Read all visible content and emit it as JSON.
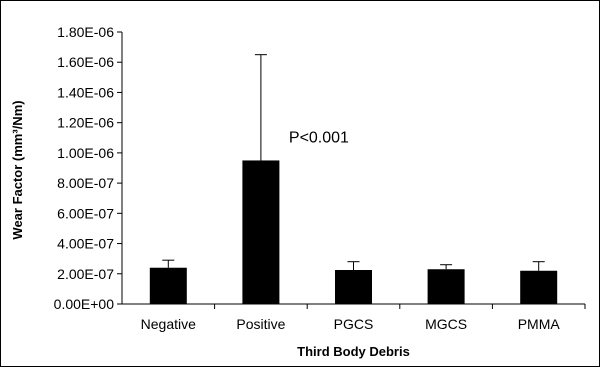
{
  "chart_data": {
    "type": "bar",
    "categories": [
      "Negative",
      "Positive",
      "PGCS",
      "MGCS",
      "PMMA"
    ],
    "values": [
      2.4e-07,
      9.5e-07,
      2.25e-07,
      2.3e-07,
      2.2e-07
    ],
    "error_upper": [
      2.9e-07,
      1.65e-06,
      2.8e-07,
      2.6e-07,
      2.8e-07
    ],
    "xlabel": "Third Body Debris",
    "ylabel": "Wear Factor (mm³/Nm)",
    "ylim": [
      0,
      1.8e-06
    ],
    "yticks": [
      0,
      2e-07,
      4e-07,
      6e-07,
      8e-07,
      1e-06,
      1.2e-06,
      1.4e-06,
      1.6e-06,
      1.8e-06
    ],
    "ytick_labels": [
      "0.00E+00",
      "2.00E-07",
      "4.00E-07",
      "6.00E-07",
      "8.00E-07",
      "1.00E-06",
      "1.20E-06",
      "1.40E-06",
      "1.60E-06",
      "1.80E-06"
    ],
    "annotations": [
      {
        "text": "P<0.001",
        "category": "Positive"
      }
    ],
    "bar_color": "#000000",
    "grid": false,
    "legend": "none"
  }
}
